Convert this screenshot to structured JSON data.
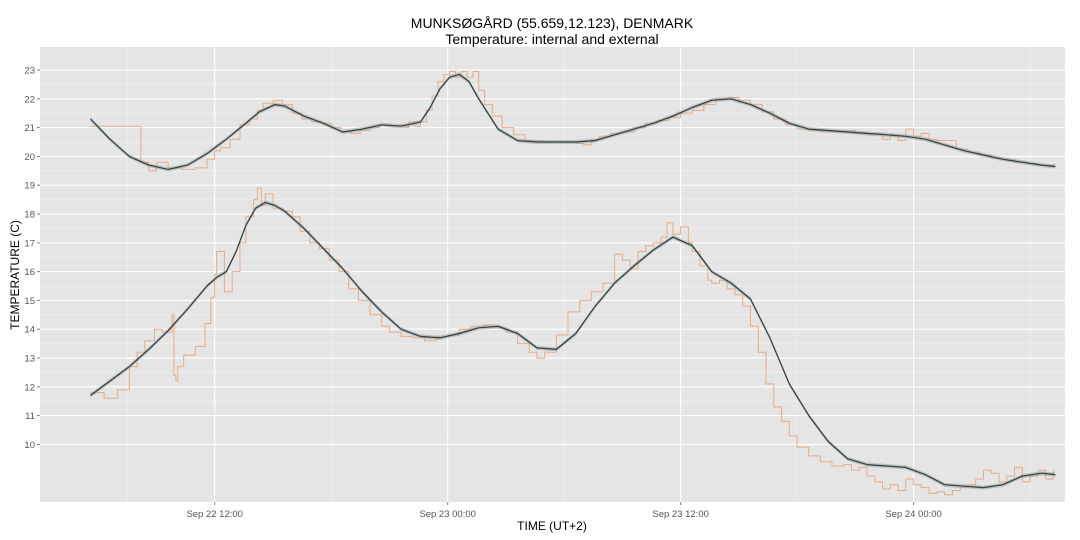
{
  "chart_data": {
    "type": "line",
    "title": "MUNKSØGÅRD (55.659,12.123), DENMARK",
    "subtitle": "Temperature: internal and external",
    "xlabel": "TIME (UT+2)",
    "ylabel": "TEMPERATURE (C)",
    "x_unit": "hours since Sep 22 00:00 (UT+2)",
    "xlim": [
      3.0,
      55.8
    ],
    "ylim": [
      8.0,
      23.8
    ],
    "x_ticks": [
      {
        "x": 12,
        "label": "Sep 22 12:00"
      },
      {
        "x": 24,
        "label": "Sep 23 00:00"
      },
      {
        "x": 36,
        "label": "Sep 23 12:00"
      },
      {
        "x": 48,
        "label": "Sep 24 00:00"
      }
    ],
    "y_ticks": [
      10,
      11,
      12,
      13,
      14,
      15,
      16,
      17,
      18,
      19,
      20,
      21,
      22,
      23
    ],
    "grid": true,
    "background": "#e5e5e5",
    "colors": {
      "raw": "#e8a47c",
      "smooth": "#2f4140",
      "ribbon": "#9aa3a3"
    },
    "series": [
      {
        "role": "internal smoothed",
        "x": [
          5.6,
          6.6,
          7.6,
          8.6,
          9.6,
          10.6,
          11.6,
          12.6,
          13.6,
          14.3,
          15.1,
          15.6,
          16.6,
          17.6,
          18.6,
          19.6,
          20.6,
          21.6,
          22.6,
          23.1,
          23.6,
          24.1,
          24.6,
          25.1,
          25.6,
          26.6,
          27.6,
          28.6,
          29.6,
          30.6,
          31.6,
          32.6,
          33.6,
          34.6,
          35.6,
          36.6,
          37.6,
          38.6,
          39.6,
          40.6,
          41.6,
          42.6,
          43.6,
          44.6,
          45.6,
          46.6,
          47.6,
          48.6,
          49.6,
          50.6,
          51.6,
          52.6,
          53.6,
          54.6,
          55.3
        ],
        "values": [
          21.3,
          20.6,
          20.0,
          19.7,
          19.55,
          19.7,
          20.1,
          20.6,
          21.15,
          21.55,
          21.8,
          21.75,
          21.4,
          21.15,
          20.85,
          20.95,
          21.1,
          21.05,
          21.2,
          21.7,
          22.35,
          22.75,
          22.85,
          22.6,
          22.0,
          20.95,
          20.55,
          20.5,
          20.5,
          20.5,
          20.55,
          20.75,
          20.95,
          21.15,
          21.4,
          21.7,
          21.95,
          22.0,
          21.8,
          21.5,
          21.15,
          20.95,
          20.9,
          20.85,
          20.8,
          20.75,
          20.7,
          20.6,
          20.4,
          20.2,
          20.05,
          19.9,
          19.8,
          19.7,
          19.65
        ]
      },
      {
        "role": "internal raw",
        "x": [
          5.6,
          6.2,
          6.9,
          7.5,
          8.0,
          8.2,
          8.5,
          8.6,
          9.0,
          9.6,
          10.3,
          11.0,
          11.6,
          12.0,
          12.3,
          12.8,
          13.3,
          13.8,
          14.2,
          14.5,
          15.0,
          15.5,
          16.0,
          16.5,
          17.0,
          17.5,
          18.0,
          18.5,
          19.0,
          19.5,
          20.0,
          20.5,
          21.0,
          21.5,
          21.8,
          22.0,
          22.3,
          22.6,
          22.9,
          23.2,
          23.5,
          23.8,
          24.1,
          24.4,
          24.7,
          25.0,
          25.3,
          25.6,
          25.9,
          26.3,
          26.8,
          27.4,
          28.0,
          29.0,
          30.0,
          30.6,
          31.0,
          31.4,
          31.8,
          32.4,
          33.0,
          33.6,
          34.2,
          34.8,
          35.4,
          36.0,
          36.6,
          37.2,
          37.8,
          38.4,
          39.0,
          39.6,
          40.2,
          40.8,
          41.4,
          42.0,
          42.6,
          43.2,
          43.8,
          44.4,
          45.0,
          45.6,
          46.0,
          46.4,
          46.8,
          47.2,
          47.6,
          48.0,
          48.4,
          48.8,
          49.2,
          49.6,
          50.2,
          50.8,
          51.4,
          52.0,
          52.6,
          53.2,
          53.8,
          54.4,
          55.0,
          55.3
        ],
        "values": [
          21.05,
          21.05,
          21.05,
          21.05,
          21.05,
          19.8,
          19.8,
          19.5,
          19.8,
          19.6,
          19.55,
          19.6,
          19.9,
          20.2,
          20.3,
          20.6,
          21.1,
          21.3,
          21.6,
          21.85,
          21.95,
          21.8,
          21.5,
          21.3,
          21.2,
          21.15,
          21.0,
          20.85,
          20.8,
          20.9,
          21.0,
          21.1,
          21.05,
          21.1,
          21.0,
          21.2,
          21.05,
          21.2,
          21.6,
          22.1,
          22.6,
          22.85,
          22.95,
          22.75,
          22.95,
          22.75,
          22.95,
          22.3,
          21.8,
          21.4,
          21.0,
          20.75,
          20.55,
          20.5,
          20.5,
          20.45,
          20.4,
          20.6,
          20.7,
          20.8,
          20.85,
          21.0,
          21.15,
          21.25,
          21.35,
          21.5,
          21.6,
          21.8,
          22.0,
          22.05,
          21.95,
          21.8,
          21.55,
          21.3,
          21.1,
          20.95,
          20.9,
          20.85,
          20.85,
          20.9,
          20.8,
          20.75,
          20.8,
          20.6,
          20.75,
          20.55,
          20.95,
          20.7,
          20.8,
          20.6,
          20.55,
          20.55,
          20.25,
          20.15,
          20.05,
          19.95,
          19.9,
          19.8,
          19.75,
          19.7,
          19.7,
          19.7
        ]
      },
      {
        "role": "external smoothed",
        "x": [
          5.6,
          6.6,
          7.6,
          8.6,
          9.6,
          10.6,
          11.6,
          12.1,
          12.6,
          13.1,
          13.6,
          14.1,
          14.6,
          15.1,
          15.6,
          16.6,
          17.6,
          18.6,
          19.6,
          20.6,
          21.6,
          22.6,
          23.6,
          24.6,
          25.6,
          26.6,
          27.6,
          28.6,
          29.6,
          30.6,
          31.6,
          32.6,
          33.6,
          34.6,
          35.6,
          36.6,
          37.6,
          38.6,
          39.6,
          40.6,
          41.6,
          42.6,
          43.6,
          44.6,
          45.6,
          46.6,
          47.6,
          48.6,
          49.6,
          50.6,
          51.6,
          52.6,
          53.6,
          54.6,
          55.3
        ],
        "values": [
          11.7,
          12.2,
          12.7,
          13.3,
          13.95,
          14.7,
          15.5,
          15.8,
          16.0,
          16.7,
          17.6,
          18.2,
          18.4,
          18.3,
          18.1,
          17.5,
          16.8,
          16.1,
          15.3,
          14.6,
          14.0,
          13.75,
          13.7,
          13.85,
          14.05,
          14.1,
          13.85,
          13.35,
          13.3,
          13.85,
          14.8,
          15.6,
          16.2,
          16.75,
          17.2,
          16.9,
          16.0,
          15.6,
          15.05,
          13.7,
          12.1,
          11.0,
          10.1,
          9.5,
          9.3,
          9.25,
          9.2,
          8.95,
          8.6,
          8.55,
          8.5,
          8.6,
          8.9,
          9.0,
          8.95
        ]
      },
      {
        "role": "external raw",
        "x": [
          5.6,
          6.3,
          7.0,
          7.6,
          8.0,
          8.4,
          8.9,
          9.3,
          9.8,
          9.9,
          10.0,
          10.1,
          10.4,
          11.0,
          11.5,
          11.8,
          12.0,
          12.1,
          12.5,
          12.9,
          13.3,
          13.6,
          14.0,
          14.2,
          14.4,
          14.6,
          15.0,
          15.5,
          16.0,
          16.4,
          16.9,
          17.4,
          17.9,
          18.4,
          18.9,
          19.4,
          20.0,
          20.6,
          21.0,
          21.6,
          22.2,
          22.8,
          23.4,
          24.0,
          24.6,
          25.2,
          25.8,
          26.4,
          27.0,
          27.6,
          28.2,
          28.6,
          29.0,
          29.6,
          30.2,
          30.8,
          31.4,
          32.0,
          32.6,
          33.0,
          33.4,
          33.8,
          34.2,
          34.6,
          35.0,
          35.3,
          35.6,
          36.0,
          36.4,
          36.6,
          37.0,
          37.4,
          37.6,
          38.0,
          38.4,
          38.8,
          39.2,
          39.6,
          40.0,
          40.4,
          40.8,
          41.2,
          41.6,
          42.0,
          42.6,
          43.2,
          43.8,
          44.4,
          44.8,
          45.2,
          45.6,
          46.0,
          46.4,
          46.8,
          47.2,
          47.6,
          48.0,
          48.4,
          48.8,
          49.2,
          49.6,
          50.0,
          50.4,
          50.8,
          51.2,
          51.6,
          52.0,
          52.4,
          52.8,
          53.2,
          53.6,
          54.0,
          54.4,
          54.8,
          55.2
        ],
        "values": [
          11.8,
          11.6,
          11.9,
          12.7,
          13.2,
          13.6,
          14.0,
          13.9,
          14.5,
          12.4,
          12.2,
          12.7,
          13.1,
          13.4,
          14.2,
          15.1,
          15.9,
          16.7,
          15.3,
          16.0,
          17.0,
          17.9,
          18.5,
          18.9,
          18.3,
          18.7,
          18.2,
          18.1,
          17.9,
          17.4,
          17.0,
          16.8,
          16.4,
          16.0,
          15.4,
          15.0,
          14.5,
          14.1,
          13.9,
          13.75,
          13.7,
          13.6,
          13.75,
          13.8,
          14.0,
          14.1,
          14.15,
          14.05,
          13.9,
          13.5,
          13.2,
          13.0,
          13.2,
          13.8,
          14.6,
          15.0,
          15.3,
          15.6,
          16.6,
          16.4,
          16.1,
          16.7,
          16.9,
          17.0,
          17.2,
          17.7,
          17.3,
          17.55,
          17.0,
          16.7,
          16.2,
          15.7,
          15.6,
          15.7,
          15.4,
          15.2,
          14.8,
          14.1,
          13.2,
          12.1,
          11.3,
          10.8,
          10.3,
          9.9,
          9.6,
          9.4,
          9.25,
          9.3,
          9.1,
          9.2,
          8.9,
          8.7,
          8.45,
          8.6,
          8.4,
          8.8,
          8.6,
          8.5,
          8.3,
          8.35,
          8.25,
          8.4,
          8.5,
          8.6,
          8.8,
          9.1,
          9.0,
          8.7,
          8.9,
          9.2,
          8.7,
          8.9,
          9.1,
          8.8,
          9.1
        ]
      }
    ]
  }
}
